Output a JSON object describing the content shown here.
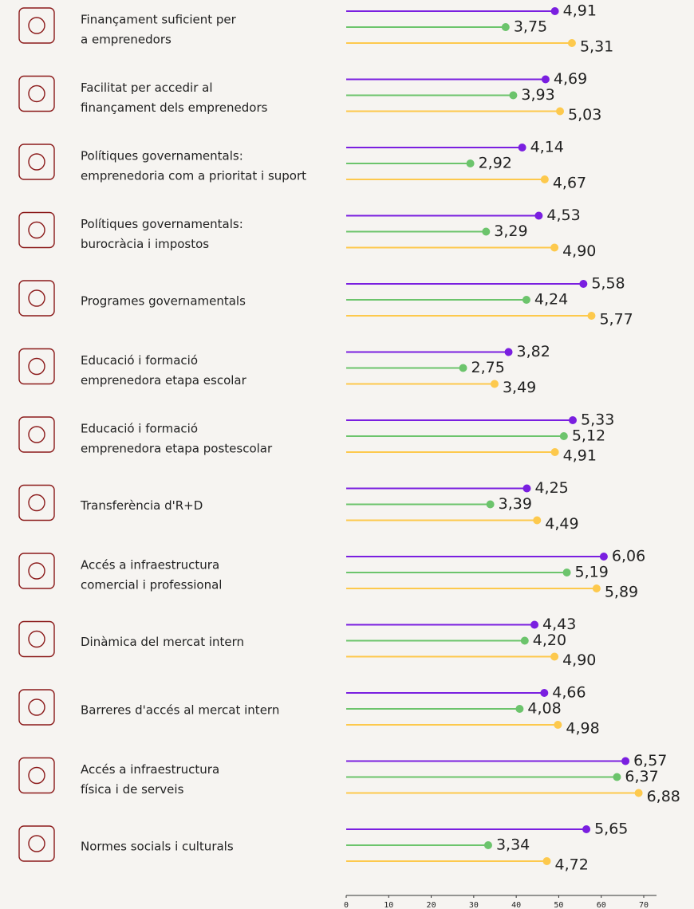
{
  "chart_data": {
    "type": "lollipop",
    "categories": [
      [
        "Finançament suficient per",
        "a emprenedors"
      ],
      [
        "Facilitat per accedir al",
        "finançament dels emprenedors"
      ],
      [
        "Polítiques governamentals:",
        "emprenedoria com a prioritat i suport"
      ],
      [
        "Polítiques governamentals:",
        "burocràcia i impostos"
      ],
      [
        "Programes governamentals"
      ],
      [
        "Educació i formació",
        "emprenedora etapa escolar"
      ],
      [
        "Educació i formació",
        "emprenedora etapa postescolar"
      ],
      [
        "Transferència d'R+D"
      ],
      [
        "Accés a infraestructura",
        "comercial i professional"
      ],
      [
        "Dinàmica del mercat intern"
      ],
      [
        "Barreres d'accés al mercat intern"
      ],
      [
        "Accés a infraestructura",
        "física i de serveis"
      ],
      [
        "Normes socials i culturals"
      ]
    ],
    "series": [
      {
        "color": "#7a1fe0",
        "values": [
          49.1,
          46.9,
          41.4,
          45.3,
          55.8,
          38.2,
          53.3,
          42.5,
          60.6,
          44.3,
          46.6,
          65.7,
          56.5
        ],
        "value_labels": [
          "4,91",
          "4,69",
          "4,14",
          "4,53",
          "5,58",
          "3,82",
          "5,33",
          "4,25",
          "6,06",
          "4,43",
          "4,66",
          "6,57",
          "5,65"
        ]
      },
      {
        "color": "#6cc46c",
        "values": [
          37.5,
          39.3,
          29.2,
          32.9,
          42.4,
          27.5,
          51.2,
          33.9,
          51.9,
          42.0,
          40.8,
          63.7,
          33.4
        ],
        "value_labels": [
          "3,75",
          "3,93",
          "2,92",
          "3,29",
          "4,24",
          "2,75",
          "5,12",
          "3,39",
          "5,19",
          "4,20",
          "4,08",
          "6,37",
          "3,34"
        ]
      },
      {
        "color": "#fdc94d",
        "values": [
          53.1,
          50.3,
          46.7,
          49.0,
          57.7,
          34.9,
          49.1,
          44.9,
          58.9,
          49.0,
          49.8,
          68.8,
          47.2
        ],
        "value_labels": [
          "5,31",
          "5,03",
          "4,67",
          "4,90",
          "5,77",
          "3,49",
          "4,91",
          "4,49",
          "5,89",
          "4,90",
          "4,98",
          "6,88",
          "4,72"
        ]
      }
    ],
    "xlim": [
      0,
      70
    ],
    "xticks": [
      0,
      10,
      20,
      30,
      40,
      50,
      60,
      70
    ]
  }
}
